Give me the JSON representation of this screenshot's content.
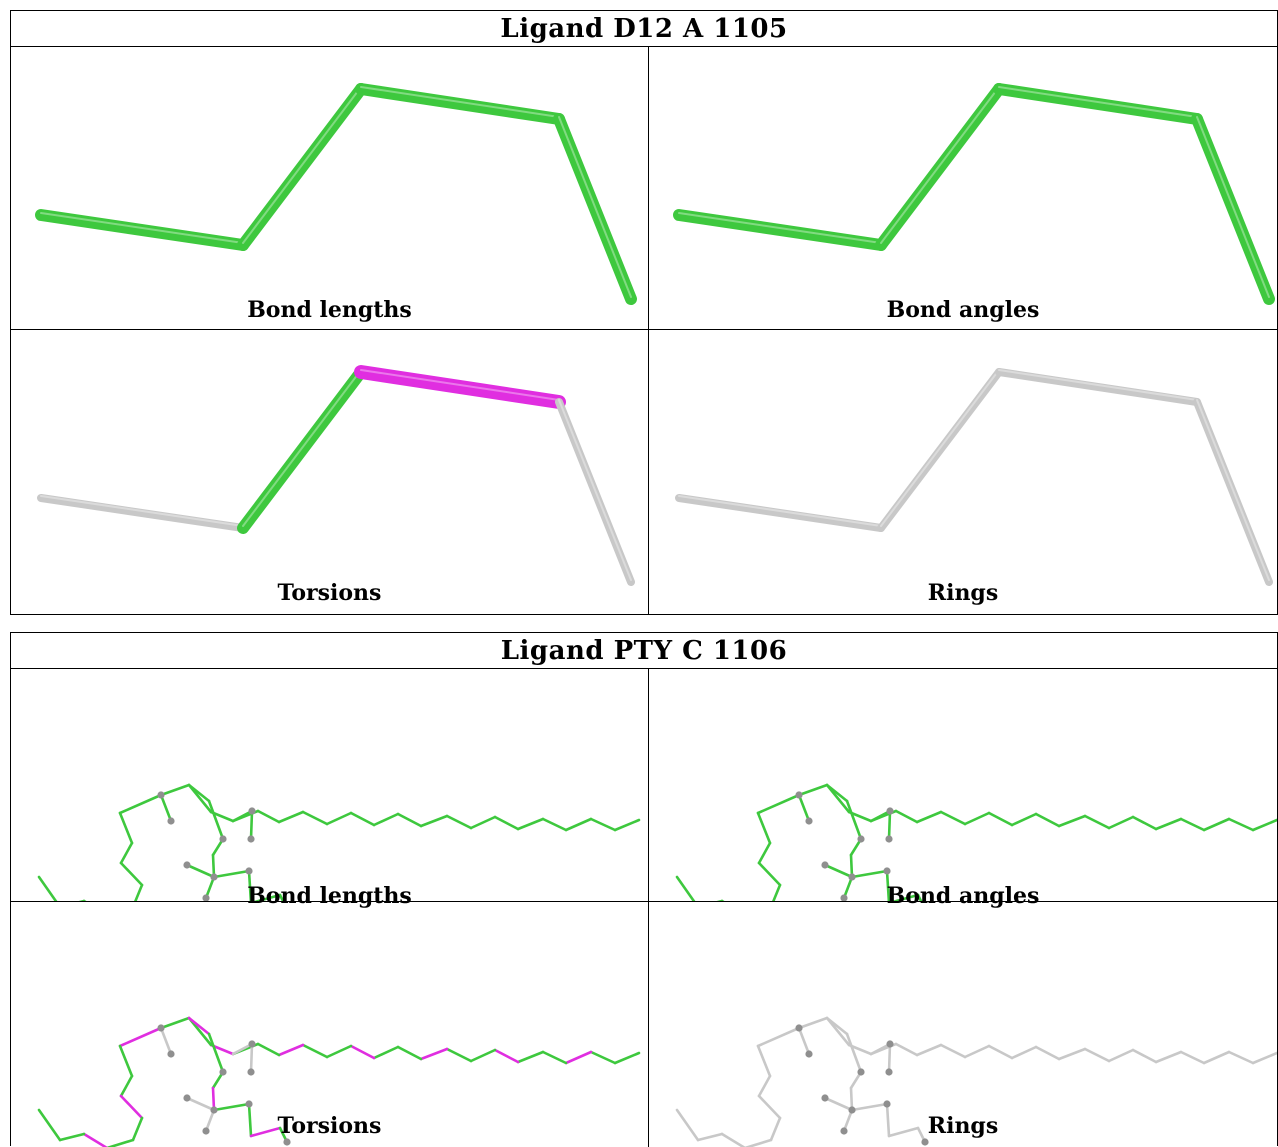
{
  "panels": [
    {
      "title": "Ligand D12 A 1105",
      "captions": [
        "Bond lengths",
        "Bond angles",
        "Torsions",
        "Rings"
      ]
    },
    {
      "title": "Ligand PTY C 1106",
      "captions": [
        "Bond lengths",
        "Bond angles",
        "Torsions",
        "Rings"
      ]
    }
  ],
  "colors": {
    "accepted": "#3ec83e",
    "outlier": "#e02ee0",
    "not_evaluated": "#c8c8c8",
    "atom": "#8f8f8f"
  }
}
